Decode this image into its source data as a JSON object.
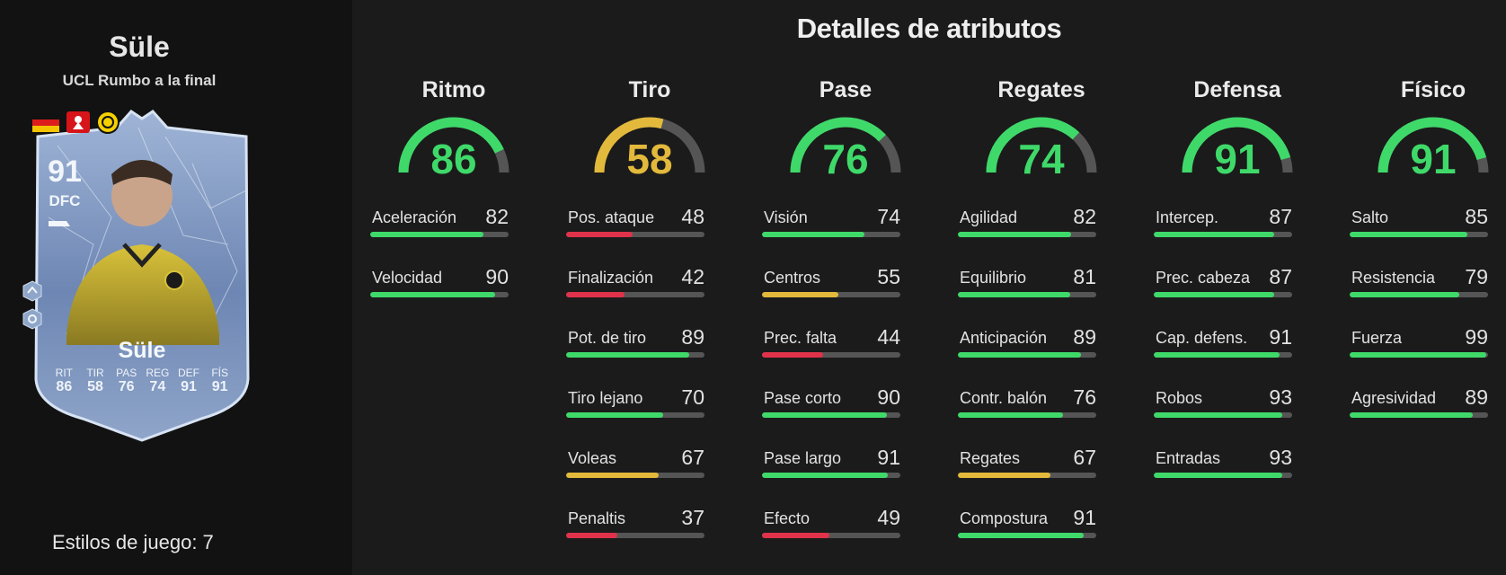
{
  "player": {
    "name": "Süle",
    "subtitle": "UCL Rumbo a la final",
    "rating": "91",
    "position": "DFC",
    "card_name": "Süle",
    "card_stats": [
      {
        "label": "RIT",
        "value": "86"
      },
      {
        "label": "TIR",
        "value": "58"
      },
      {
        "label": "PAS",
        "value": "76"
      },
      {
        "label": "REG",
        "value": "74"
      },
      {
        "label": "DEF",
        "value": "91"
      },
      {
        "label": "FÍS",
        "value": "91"
      }
    ]
  },
  "playstyles_label": "Estilos de juego: 7",
  "section_title": "Detalles de atributos",
  "colors": {
    "green": "#3fd96a",
    "yellow": "#e3b93c",
    "red": "#e0324a",
    "track": "#555555"
  },
  "categories": [
    {
      "name": "Ritmo",
      "value": 86,
      "attributes": [
        {
          "label": "Aceleración",
          "value": 82
        },
        {
          "label": "Velocidad",
          "value": 90
        }
      ]
    },
    {
      "name": "Tiro",
      "value": 58,
      "attributes": [
        {
          "label": "Pos. ataque",
          "value": 48
        },
        {
          "label": "Finalización",
          "value": 42
        },
        {
          "label": "Pot. de tiro",
          "value": 89
        },
        {
          "label": "Tiro lejano",
          "value": 70
        },
        {
          "label": "Voleas",
          "value": 67
        },
        {
          "label": "Penaltis",
          "value": 37
        }
      ]
    },
    {
      "name": "Pase",
      "value": 76,
      "attributes": [
        {
          "label": "Visión",
          "value": 74
        },
        {
          "label": "Centros",
          "value": 55
        },
        {
          "label": "Prec. falta",
          "value": 44
        },
        {
          "label": "Pase corto",
          "value": 90
        },
        {
          "label": "Pase largo",
          "value": 91
        },
        {
          "label": "Efecto",
          "value": 49
        }
      ]
    },
    {
      "name": "Regates",
      "value": 74,
      "attributes": [
        {
          "label": "Agilidad",
          "value": 82
        },
        {
          "label": "Equilibrio",
          "value": 81
        },
        {
          "label": "Anticipación",
          "value": 89
        },
        {
          "label": "Contr. balón",
          "value": 76
        },
        {
          "label": "Regates",
          "value": 67
        },
        {
          "label": "Compostura",
          "value": 91
        }
      ]
    },
    {
      "name": "Defensa",
      "value": 91,
      "attributes": [
        {
          "label": "Intercep.",
          "value": 87
        },
        {
          "label": "Prec. cabeza",
          "value": 87
        },
        {
          "label": "Cap. defens.",
          "value": 91
        },
        {
          "label": "Robos",
          "value": 93
        },
        {
          "label": "Entradas",
          "value": 93
        }
      ]
    },
    {
      "name": "Físico",
      "value": 91,
      "attributes": [
        {
          "label": "Salto",
          "value": 85
        },
        {
          "label": "Resistencia",
          "value": 79
        },
        {
          "label": "Fuerza",
          "value": 99
        },
        {
          "label": "Agresividad",
          "value": 89
        }
      ]
    }
  ]
}
